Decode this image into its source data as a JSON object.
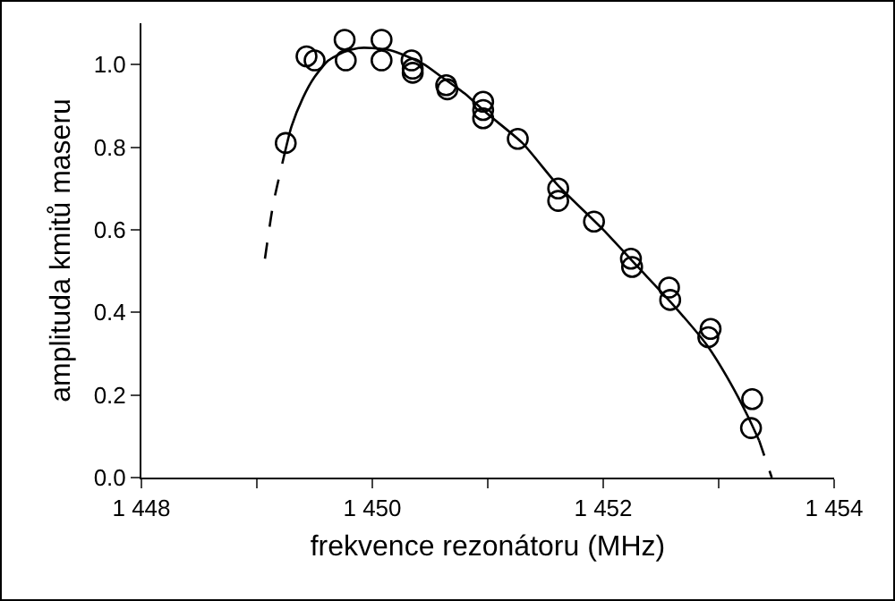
{
  "chart_data": {
    "type": "scatter",
    "xlabel": "frekvence rezonátoru (MHz)",
    "ylabel": "amplituda kmitů maseru",
    "xlim": [
      1448,
      1454
    ],
    "xticks": [
      {
        "value": 1448,
        "label": "1 448"
      },
      {
        "value": 1449,
        "label": null
      },
      {
        "value": 1450,
        "label": "1 450"
      },
      {
        "value": 1451,
        "label": null
      },
      {
        "value": 1452,
        "label": "1 452"
      },
      {
        "value": 1453,
        "label": null
      },
      {
        "value": 1454,
        "label": "1 454"
      }
    ],
    "ylim": [
      0,
      1.1
    ],
    "yticks": [
      {
        "value": 0,
        "label": "0.0"
      },
      {
        "value": 0.2,
        "label": "0.2"
      },
      {
        "value": 0.4,
        "label": "0.4"
      },
      {
        "value": 0.6,
        "label": "0.6"
      },
      {
        "value": 0.8,
        "label": "0.8"
      },
      {
        "value": 1,
        "label": "1.0"
      }
    ],
    "grid": false,
    "series": [
      {
        "marker": "circle",
        "color": "#000000",
        "x": [
          1449.25,
          1449.43,
          1449.5,
          1449.76,
          1449.77,
          1450.08,
          1450.08,
          1450.34,
          1450.35,
          1450.35,
          1450.64,
          1450.65,
          1450.96,
          1450.96,
          1450.96,
          1451.26,
          1451.61,
          1451.61,
          1451.92,
          1452.24,
          1452.25,
          1452.57,
          1452.58,
          1452.93,
          1452.91,
          1453.29,
          1453.28
        ],
        "values": [
          0.81,
          1.02,
          1.01,
          1.06,
          1.01,
          1.06,
          1.01,
          1.01,
          0.99,
          0.98,
          0.95,
          0.94,
          0.91,
          0.89,
          0.87,
          0.82,
          0.7,
          0.67,
          0.62,
          0.53,
          0.51,
          0.46,
          0.43,
          0.36,
          0.34,
          0.19,
          0.12
        ]
      },
      {
        "type": "line",
        "line_style": "solid",
        "marker": "none",
        "color": "#000000",
        "x": [
          1449.22,
          1449.3,
          1449.4,
          1449.5,
          1449.62,
          1449.75,
          1449.88,
          1450,
          1450.15,
          1450.3,
          1450.45,
          1450.6,
          1450.8,
          1451,
          1451.3,
          1451.6,
          1452,
          1452.3,
          1452.6,
          1452.9,
          1453.1,
          1453.25,
          1453.35
        ],
        "values": [
          0.76,
          0.85,
          0.92,
          0.97,
          1.01,
          1.03,
          1.04,
          1.04,
          1.035,
          1.02,
          1,
          0.97,
          0.93,
          0.88,
          0.81,
          0.71,
          0.6,
          0.51,
          0.42,
          0.32,
          0.23,
          0.15,
          0.09
        ]
      },
      {
        "type": "line",
        "line_style": "dashed",
        "marker": "none",
        "color": "#000000",
        "x": [
          1449.07,
          1449.14,
          1449.22
        ],
        "values": [
          0.53,
          0.66,
          0.76
        ]
      },
      {
        "type": "line",
        "line_style": "dashed",
        "marker": "none",
        "color": "#000000",
        "x": [
          1453.35,
          1453.46
        ],
        "values": [
          0.09,
          0
        ]
      }
    ]
  }
}
